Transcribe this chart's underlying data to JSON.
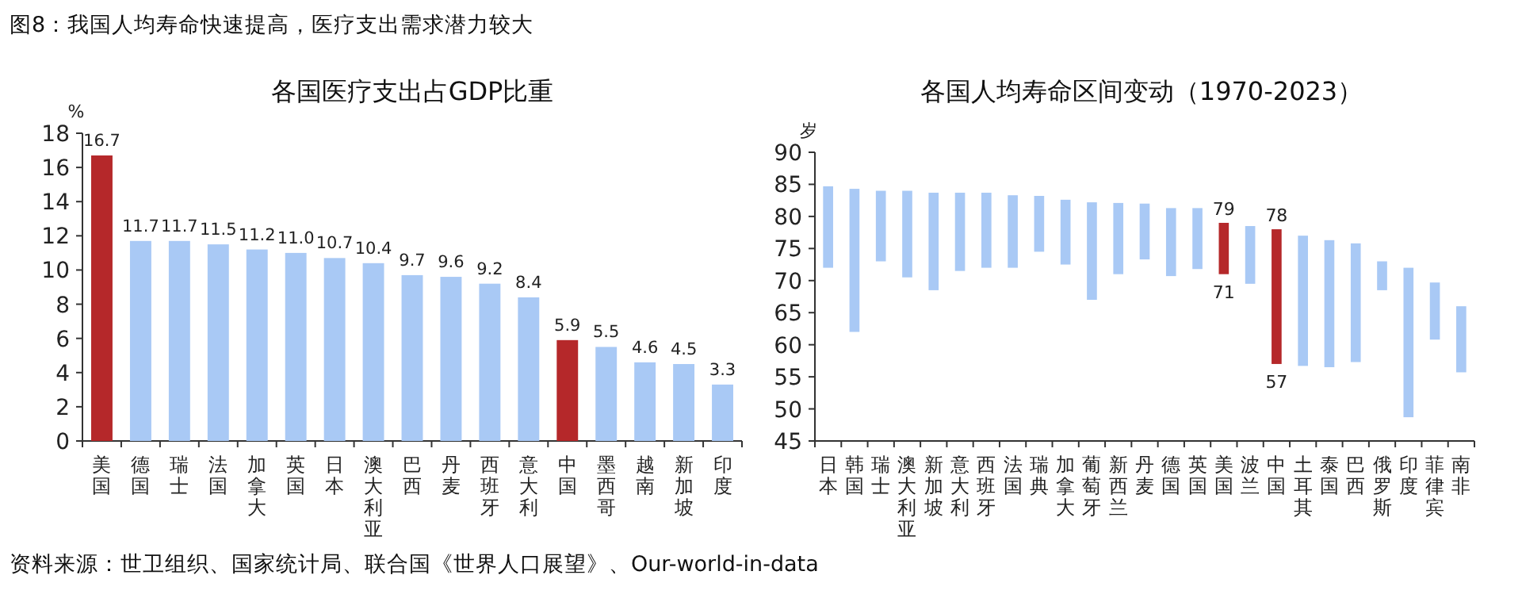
{
  "chart_data": [
    {
      "type": "bar",
      "title": "各国医疗支出占GDP比重",
      "ylabel": "%",
      "ylim": [
        0,
        18
      ],
      "yticks": [
        0,
        2,
        4,
        6,
        8,
        10,
        12,
        14,
        16,
        18
      ],
      "categories": [
        "美国",
        "德国",
        "瑞士",
        "法国",
        "加拿大",
        "英国",
        "日本",
        "澳大利亚",
        "巴西",
        "丹麦",
        "西班牙",
        "意大利",
        "中国",
        "墨西哥",
        "越南",
        "新加坡",
        "印度"
      ],
      "values": [
        16.7,
        11.7,
        11.7,
        11.5,
        11.2,
        11.0,
        10.7,
        10.4,
        9.7,
        9.6,
        9.2,
        8.4,
        5.9,
        5.5,
        4.6,
        4.5,
        3.3
      ],
      "value_labels": [
        "16.7",
        "11.7",
        "11.7",
        "11.5",
        "11.2",
        "11.0",
        "10.7",
        "10.4",
        "9.7",
        "9.6",
        "9.2",
        "8.4",
        "5.9",
        "5.5",
        "4.6",
        "4.5",
        "3.3"
      ],
      "colors": [
        "#b5282a",
        "#a9c9f5",
        "#a9c9f5",
        "#a9c9f5",
        "#a9c9f5",
        "#a9c9f5",
        "#a9c9f5",
        "#a9c9f5",
        "#a9c9f5",
        "#a9c9f5",
        "#a9c9f5",
        "#a9c9f5",
        "#b5282a",
        "#a9c9f5",
        "#a9c9f5",
        "#a9c9f5",
        "#a9c9f5"
      ],
      "annotations": [
        "图8：我国人均寿命快速提高，医疗支出需求潜力较大",
        "资料来源：世卫组织、国家统计局、联合国《世界人口展望》、Our-world-in-data"
      ]
    },
    {
      "type": "bar",
      "title": "各国人均寿命区间变动（1970-2023）",
      "ylabel": "岁",
      "ylim": [
        45,
        90
      ],
      "yticks": [
        45,
        50,
        55,
        60,
        65,
        70,
        75,
        80,
        85,
        90
      ],
      "categories": [
        "日本",
        "韩国",
        "瑞士",
        "澳大利亚",
        "新加坡",
        "意大利",
        "西班牙",
        "法国",
        "瑞典",
        "加拿大",
        "葡萄牙",
        "新西兰",
        "丹麦",
        "德国",
        "英国",
        "美国",
        "波兰",
        "中国",
        "土耳其",
        "泰国",
        "巴西",
        "俄罗斯",
        "印度",
        "菲律宾",
        "南非"
      ],
      "base": [
        72,
        62,
        73,
        70.5,
        68.5,
        71.5,
        72,
        72,
        74.5,
        72.5,
        67,
        71,
        73.3,
        70.7,
        71.8,
        71,
        69.5,
        57,
        56.7,
        56.5,
        57.3,
        68.5,
        48.7,
        60.8,
        55.7
      ],
      "values": [
        12.7,
        22.3,
        11,
        13.5,
        15.2,
        12.2,
        11.7,
        11.3,
        8.7,
        10.1,
        15.2,
        11.1,
        8.7,
        10.6,
        9.5,
        8,
        9,
        21,
        20.3,
        19.8,
        18.5,
        4.5,
        23.3,
        8.9,
        10.3
      ],
      "colors": [
        "#a9c9f5",
        "#a9c9f5",
        "#a9c9f5",
        "#a9c9f5",
        "#a9c9f5",
        "#a9c9f5",
        "#a9c9f5",
        "#a9c9f5",
        "#a9c9f5",
        "#a9c9f5",
        "#a9c9f5",
        "#a9c9f5",
        "#a9c9f5",
        "#a9c9f5",
        "#a9c9f5",
        "#b5282a",
        "#a9c9f5",
        "#b5282a",
        "#a9c9f5",
        "#a9c9f5",
        "#a9c9f5",
        "#a9c9f5",
        "#a9c9f5",
        "#a9c9f5",
        "#a9c9f5"
      ],
      "annotations": [
        {
          "text": "79",
          "x": "美国",
          "y": 79
        },
        {
          "text": "71",
          "x": "美国",
          "y": 71
        },
        {
          "text": "78",
          "x": "中国",
          "y": 78
        },
        {
          "text": "57",
          "x": "中国",
          "y": 57
        }
      ]
    }
  ]
}
